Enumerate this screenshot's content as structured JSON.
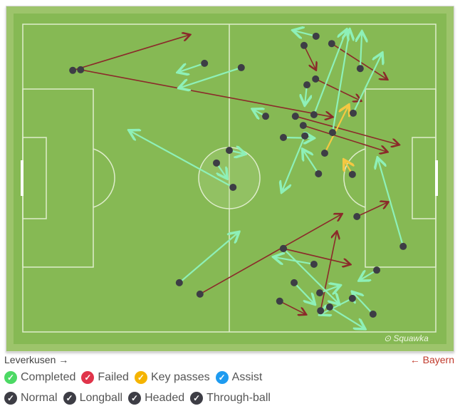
{
  "chart_data": {
    "type": "pass-map",
    "coordinate_units": "percent of pitch length/width",
    "xlim": [
      0,
      100
    ],
    "ylim": [
      0,
      100
    ],
    "watermark": "Squawka",
    "teams": {
      "home": "Leverkusen",
      "away": "Bayern"
    },
    "legend": {
      "outcomes": [
        {
          "label": "Completed",
          "color": "#4cd964"
        },
        {
          "label": "Failed",
          "color": "#e0344a"
        },
        {
          "label": "Key passes",
          "color": "#f5b400"
        },
        {
          "label": "Assist",
          "color": "#1e9bf0"
        }
      ],
      "types": [
        {
          "label": "Normal"
        },
        {
          "label": "Longball"
        },
        {
          "label": "Headed"
        },
        {
          "label": "Through-ball"
        }
      ]
    },
    "colors": {
      "completed": "#8ef0b8",
      "failed": "#8b2a2a",
      "key": "#f5c842"
    },
    "passes": [
      {
        "o": "failed",
        "from": [
          12.1,
          15.0
        ],
        "to": [
          40.3,
          3.5
        ]
      },
      {
        "o": "failed",
        "from": [
          14.0,
          14.8
        ],
        "to": [
          74.8,
          30.1
        ]
      },
      {
        "o": "failed",
        "from": [
          74.8,
          6.3
        ],
        "to": [
          88.1,
          17.8
        ]
      },
      {
        "o": "failed",
        "from": [
          68.1,
          6.9
        ],
        "to": [
          70.9,
          14.6
        ]
      },
      {
        "o": "failed",
        "from": [
          70.9,
          17.8
        ],
        "to": [
          81.7,
          24.8
        ]
      },
      {
        "o": "failed",
        "from": [
          66.0,
          29.9
        ],
        "to": [
          90.9,
          39.1
        ]
      },
      {
        "o": "failed",
        "from": [
          67.9,
          32.9
        ],
        "to": [
          88.1,
          41.4
        ]
      },
      {
        "o": "failed",
        "from": [
          42.9,
          87.7
        ],
        "to": [
          77.1,
          61.8
        ]
      },
      {
        "o": "failed",
        "from": [
          80.9,
          62.5
        ],
        "to": [
          88.3,
          57.9
        ]
      },
      {
        "o": "failed",
        "from": [
          63.1,
          72.9
        ],
        "to": [
          79.1,
          78.0
        ]
      },
      {
        "o": "failed",
        "from": [
          72.1,
          93.1
        ],
        "to": [
          76.0,
          67.6
        ]
      },
      {
        "o": "failed",
        "from": [
          62.2,
          90.0
        ],
        "to": [
          68.4,
          94.2
        ]
      },
      {
        "o": "key",
        "from": [
          73.1,
          41.9
        ],
        "to": [
          78.8,
          26.6
        ]
      },
      {
        "o": "key",
        "from": [
          79.8,
          48.8
        ],
        "to": [
          77.9,
          44.4
        ]
      },
      {
        "o": "completed",
        "from": [
          71.0,
          3.9
        ],
        "to": [
          65.7,
          2.1
        ]
      },
      {
        "o": "completed",
        "from": [
          44.0,
          12.7
        ],
        "to": [
          37.8,
          15.5
        ]
      },
      {
        "o": "completed",
        "from": [
          52.9,
          14.1
        ],
        "to": [
          38.1,
          20.6
        ]
      },
      {
        "o": "completed",
        "from": [
          50.9,
          53.0
        ],
        "to": [
          26.0,
          34.7
        ]
      },
      {
        "o": "completed",
        "from": [
          50.0,
          41.0
        ],
        "to": [
          53.6,
          42.1
        ]
      },
      {
        "o": "completed",
        "from": [
          46.9,
          45.1
        ],
        "to": [
          49.3,
          49.8
        ]
      },
      {
        "o": "completed",
        "from": [
          58.8,
          29.9
        ],
        "to": [
          55.9,
          27.8
        ]
      },
      {
        "o": "completed",
        "from": [
          63.1,
          36.8
        ],
        "to": [
          70.2,
          37.0
        ]
      },
      {
        "o": "completed",
        "from": [
          68.3,
          36.3
        ],
        "to": [
          62.8,
          54.2
        ]
      },
      {
        "o": "completed",
        "from": [
          71.6,
          48.6
        ],
        "to": [
          67.9,
          41.0
        ]
      },
      {
        "o": "completed",
        "from": [
          68.8,
          19.7
        ],
        "to": [
          68.3,
          25.9
        ]
      },
      {
        "o": "completed",
        "from": [
          80.0,
          28.9
        ],
        "to": [
          86.9,
          9.7
        ]
      },
      {
        "o": "completed",
        "from": [
          81.7,
          14.4
        ],
        "to": [
          82.1,
          2.8
        ]
      },
      {
        "o": "completed",
        "from": [
          75.0,
          35.2
        ],
        "to": [
          79.1,
          2.1
        ]
      },
      {
        "o": "completed",
        "from": [
          70.5,
          29.4
        ],
        "to": [
          78.3,
          2.1
        ]
      },
      {
        "o": "completed",
        "from": [
          92.1,
          72.2
        ],
        "to": [
          86.0,
          43.8
        ]
      },
      {
        "o": "completed",
        "from": [
          37.9,
          84.0
        ],
        "to": [
          52.1,
          67.8
        ]
      },
      {
        "o": "completed",
        "from": [
          63.1,
          72.9
        ],
        "to": [
          76.4,
          90.7
        ]
      },
      {
        "o": "completed",
        "from": [
          70.5,
          78.0
        ],
        "to": [
          61.0,
          75.7
        ]
      },
      {
        "o": "completed",
        "from": [
          85.7,
          79.9
        ],
        "to": [
          81.7,
          83.1
        ]
      },
      {
        "o": "completed",
        "from": [
          65.7,
          84.0
        ],
        "to": [
          70.5,
          90.7
        ]
      },
      {
        "o": "completed",
        "from": [
          71.9,
          87.3
        ],
        "to": [
          76.6,
          85.0
        ]
      },
      {
        "o": "completed",
        "from": [
          74.3,
          91.9
        ],
        "to": [
          82.6,
          98.8
        ]
      },
      {
        "o": "completed",
        "from": [
          84.8,
          94.2
        ],
        "to": [
          80.0,
          87.3
        ]
      },
      {
        "o": "completed",
        "from": [
          79.8,
          89.1
        ],
        "to": [
          72.2,
          94.2
        ]
      }
    ]
  }
}
